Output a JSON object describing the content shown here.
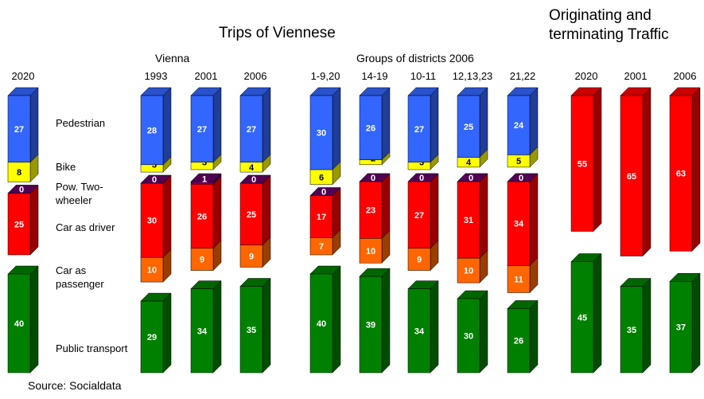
{
  "chart_data": {
    "type": "bar3d-stacked",
    "title": "Trips of Viennese",
    "title_right": "Originating and terminating Traffic",
    "group_labels": [
      "Vienna",
      "Groups of districts 2006"
    ],
    "source": "Source: Socialdata",
    "categories": [
      "2020",
      "1993",
      "2001",
      "2006",
      "1-9,20",
      "14-19",
      "10-11",
      "12,13,23",
      "21,22",
      "2020",
      "2001",
      "2006"
    ],
    "series": [
      {
        "name": "Pedestrian",
        "color": "#3366ff",
        "values": [
          27,
          28,
          27,
          27,
          30,
          26,
          27,
          25,
          24,
          null,
          null,
          null
        ]
      },
      {
        "name": "Bike",
        "color": "#ffff00",
        "values": [
          8,
          3,
          3,
          4,
          6,
          2,
          3,
          4,
          5,
          null,
          null,
          null
        ]
      },
      {
        "name": "Pow. Two-wheeler",
        "color": "#660066",
        "values": [
          0,
          0,
          1,
          0,
          0,
          0,
          0,
          0,
          0,
          null,
          null,
          null
        ]
      },
      {
        "name": "Car as driver",
        "color": "#ff0000",
        "values": [
          25,
          30,
          26,
          25,
          17,
          23,
          27,
          31,
          34,
          55,
          65,
          63
        ]
      },
      {
        "name": "Car as passenger",
        "color": "#ff6600",
        "values": [
          null,
          10,
          9,
          9,
          7,
          10,
          9,
          10,
          11,
          null,
          null,
          null
        ]
      },
      {
        "name": "Public transport",
        "color": "#008000",
        "values": [
          40,
          29,
          34,
          35,
          40,
          39,
          34,
          30,
          26,
          45,
          35,
          37
        ]
      }
    ]
  }
}
